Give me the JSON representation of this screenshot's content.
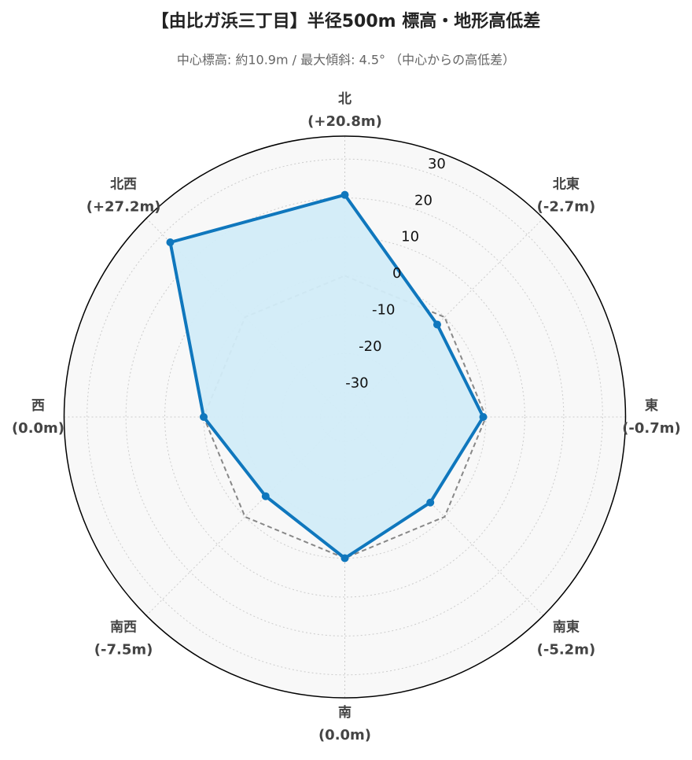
{
  "chart_data": {
    "type": "radar",
    "title": "【由比ガ浜三丁目】半径500m 標高・地形高低差",
    "subtitle": "中心標高: 約10.9m / 最大傾斜: 4.5° （中心からの高低差）",
    "categories": [
      "北",
      "北東",
      "東",
      "南東",
      "南",
      "南西",
      "西",
      "北西"
    ],
    "series": [
      {
        "color": "#0f77bd",
        "fill": "#d2ecf8",
        "values": [
          20.8,
          -2.7,
          -0.7,
          -5.2,
          0.0,
          -7.5,
          0.0,
          27.2
        ],
        "value_labels": [
          "(+20.8m)",
          "(-2.7m)",
          "(-0.7m)",
          "(-5.2m)",
          "(0.0m)",
          "(-7.5m)",
          "(0.0m)",
          "(+27.2m)"
        ]
      },
      {
        "color": "#888888",
        "dashed": true,
        "values": [
          0,
          0,
          0,
          0,
          0,
          0,
          0,
          0
        ]
      }
    ],
    "ylim": [
      -36.3,
      35.9
    ],
    "yticks": [
      -30,
      -20,
      -10,
      0,
      10,
      20,
      30
    ],
    "grid": true
  }
}
